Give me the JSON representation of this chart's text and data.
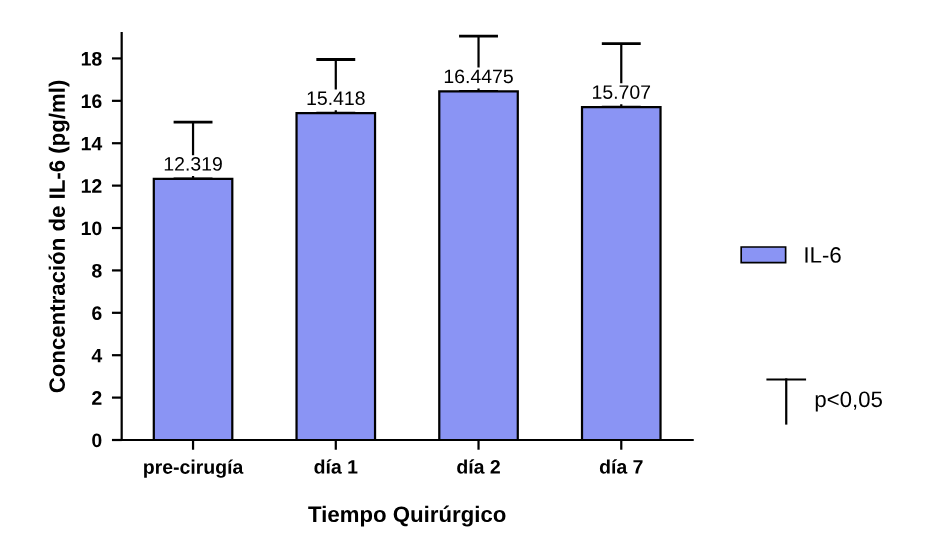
{
  "chart_data": {
    "type": "bar",
    "xlabel": "Tiempo Quirúrgico",
    "ylabel": "Concentración de IL-6 (pg/ml)",
    "categories": [
      "pre-cirugía",
      "día 1",
      "día 2",
      "día 7"
    ],
    "series": [
      {
        "name": "IL-6",
        "color": "#8a94f4",
        "values": [
          12.319,
          15.418,
          16.4475,
          15.707
        ],
        "errors": [
          [
            12.319,
            15.0
          ],
          [
            15.418,
            17.95
          ],
          [
            16.4475,
            19.05
          ],
          [
            15.707,
            18.7
          ]
        ]
      }
    ],
    "data_labels": true,
    "ylim": [
      0,
      19.2
    ],
    "yticks": [
      0,
      2,
      4,
      6,
      8,
      10,
      12,
      14,
      16,
      18
    ],
    "grid": false,
    "legend": "right",
    "annotations": [
      "p<0,05"
    ]
  }
}
